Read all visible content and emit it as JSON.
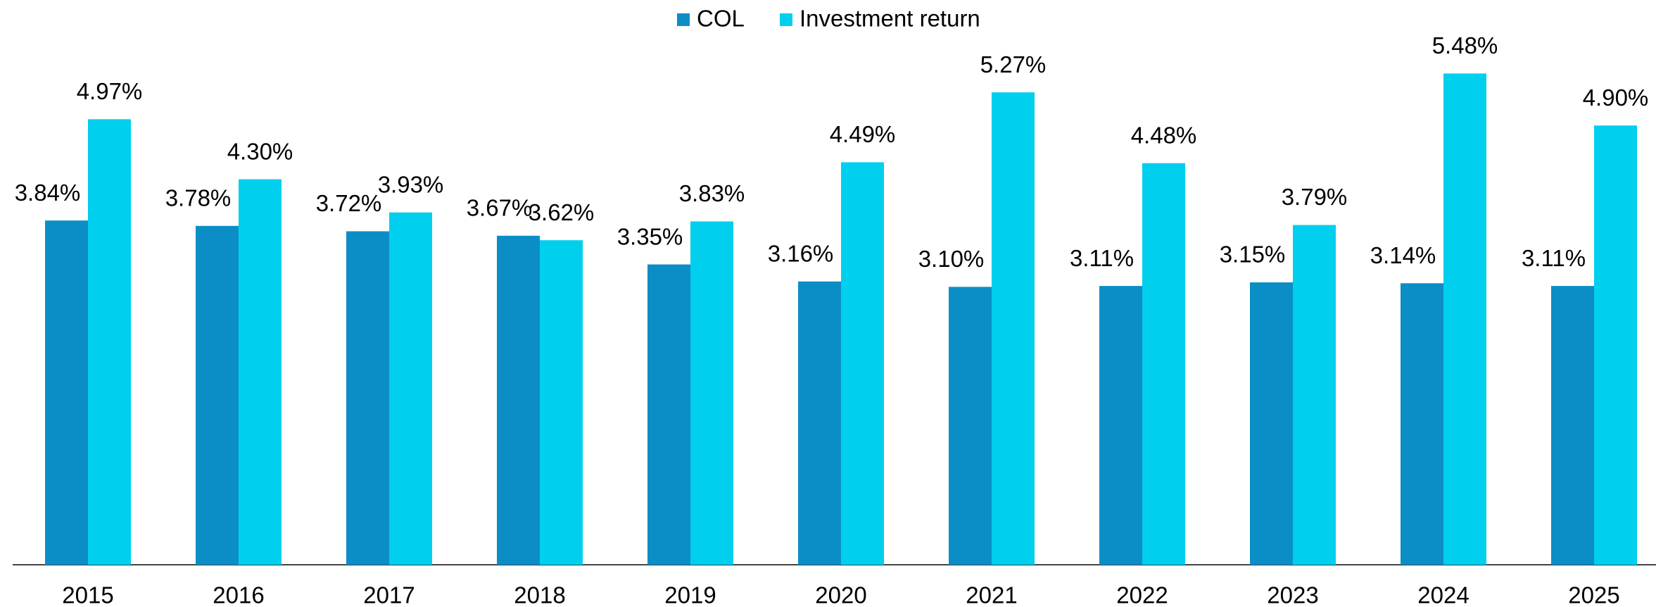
{
  "chart_data": {
    "type": "bar",
    "categories": [
      "2015",
      "2016",
      "2017",
      "2018",
      "2019",
      "2020",
      "2021",
      "2022",
      "2023",
      "2024",
      "2025"
    ],
    "series": [
      {
        "name": "COL",
        "color": "#0b8ec6",
        "values": [
          3.84,
          3.78,
          3.72,
          3.67,
          3.35,
          3.16,
          3.1,
          3.11,
          3.15,
          3.14,
          3.11
        ],
        "value_labels": [
          "3.84%",
          "3.78%",
          "3.72%",
          "3.67%",
          "3.35%",
          "3.16%",
          "3.10%",
          "3.11%",
          "3.15%",
          "3.14%",
          "3.11%"
        ]
      },
      {
        "name": "Investment return",
        "color": "#00cfee",
        "values": [
          4.97,
          4.3,
          3.93,
          3.62,
          3.83,
          4.49,
          5.27,
          4.48,
          3.79,
          5.48,
          4.9
        ],
        "value_labels": [
          "4.97%",
          "4.30%",
          "3.93%",
          "3.62%",
          "3.83%",
          "4.49%",
          "5.27%",
          "4.48%",
          "3.79%",
          "5.48%",
          "4.90%"
        ]
      }
    ],
    "ylim": [
      0,
      6.3
    ]
  }
}
